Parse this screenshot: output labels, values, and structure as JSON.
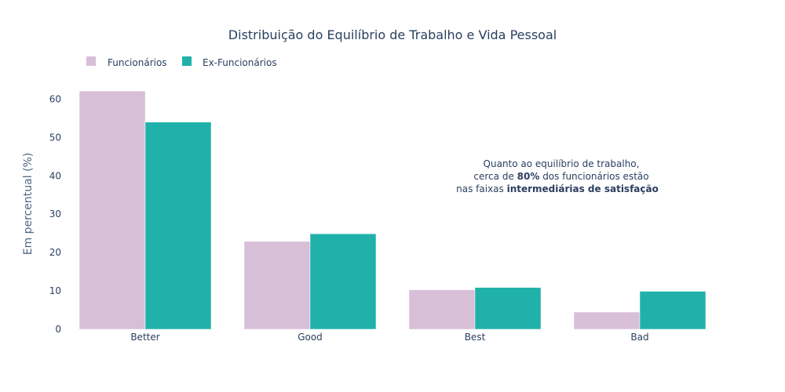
{
  "chart_data": {
    "type": "bar",
    "title": "Distribuição do Equilíbrio de Trabalho e Vida Pessoal",
    "xlabel": "",
    "ylabel": "Em percentual (%)",
    "categories": [
      "Better",
      "Good",
      "Best",
      "Bad"
    ],
    "series": [
      {
        "name": "Funcionários",
        "values": [
          62.1,
          22.9,
          10.3,
          4.5
        ],
        "color": "#d8bfd8"
      },
      {
        "name": "Ex-Funcionários",
        "values": [
          54.0,
          24.9,
          10.9,
          9.9
        ],
        "color": "#20b2aa"
      }
    ],
    "ylim": [
      0,
      65.4
    ],
    "yticks": [
      0,
      10,
      20,
      30,
      40,
      50,
      60
    ],
    "legend_position": "top-left, horizontal",
    "grid": false,
    "annotation": {
      "line1": "Quanto ao equilíbrio de trabalho,",
      "line2_pre": "cerca de ",
      "line2_bold": "80%",
      "line2_post": " dos funcionários estão",
      "line3_pre": "nas faixas ",
      "line3_bold": "intermediárias de satisfação"
    }
  }
}
